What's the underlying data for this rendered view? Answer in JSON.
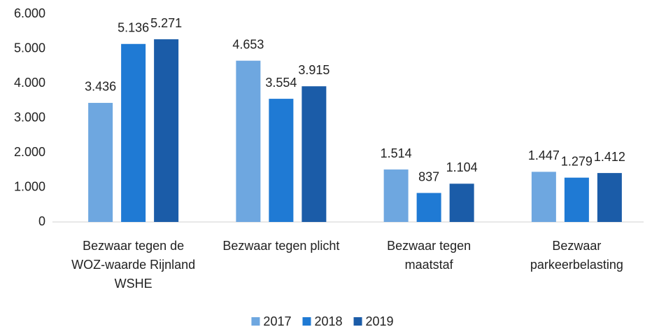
{
  "chart_data": {
    "type": "bar",
    "categories": [
      "Bezwaar tegen de WOZ-waarde Rijnland WSHE",
      "Bezwaar tegen plicht",
      "Bezwaar tegen maatstaf",
      "Bezwaar parkeerbelasting"
    ],
    "series": [
      {
        "name": "2017",
        "color": "#6ea7e0",
        "values": [
          3436,
          4653,
          1514,
          1447
        ],
        "value_labels": [
          "3.436",
          "4.653",
          "1.514",
          "1.447"
        ]
      },
      {
        "name": "2018",
        "color": "#1f7ad4",
        "values": [
          5136,
          3554,
          837,
          1279
        ],
        "value_labels": [
          "5.136",
          "3.554",
          "837",
          "1.279"
        ]
      },
      {
        "name": "2019",
        "color": "#1b5ca8",
        "values": [
          5271,
          3915,
          1104,
          1412
        ],
        "value_labels": [
          "5.271",
          "3.915",
          "1.104",
          "1.412"
        ]
      }
    ],
    "ylim": [
      0,
      6000
    ],
    "yticks": [
      0,
      {
        "value": 1000,
        "label": "1.000"
      },
      {
        "value": 2000,
        "label": "2.000"
      },
      {
        "value": 3000,
        "label": "3.000"
      },
      {
        "value": 4000,
        "label": "4.000"
      },
      {
        "value": 5000,
        "label": "5.000"
      },
      {
        "value": 6000,
        "label": "6.000"
      }
    ],
    "grid": false,
    "legend": "bottom"
  }
}
